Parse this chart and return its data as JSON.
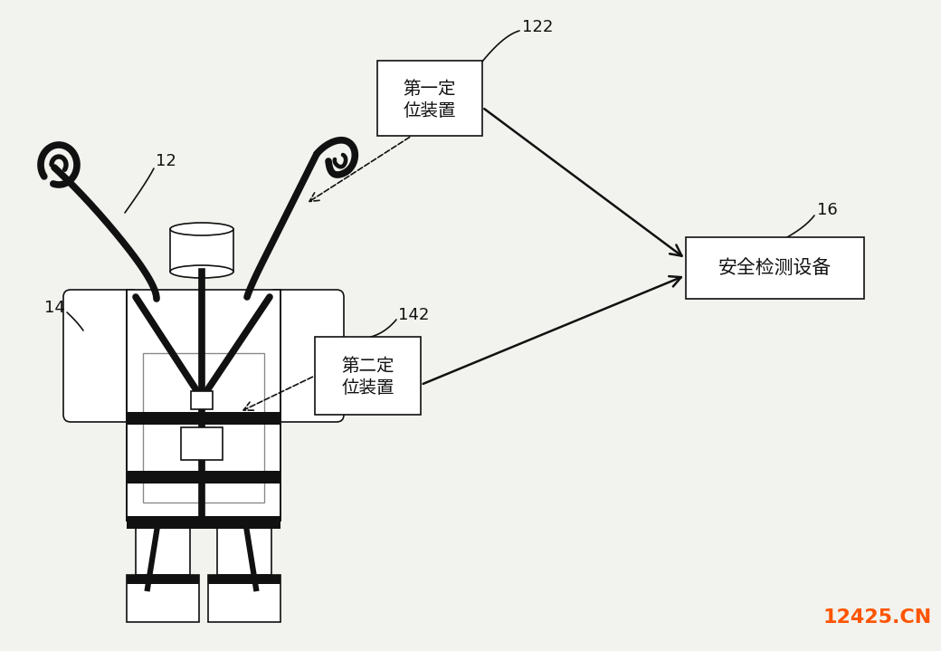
{
  "bg_color": "#f2f2ee",
  "line_color": "#111111",
  "thick_lw": 5.5,
  "thin_lw": 1.2,
  "label_12": "12",
  "label_14": "14",
  "label_122": "122",
  "label_142": "142",
  "label_16": "16",
  "box1_text_line1": "第一定",
  "box1_text_line2": "位装置",
  "box2_text_line1": "第二定",
  "box2_text_line2": "位装置",
  "box3_text": "安全检测设备",
  "watermark": "12425.CN",
  "watermark_color": "#ff5500",
  "fig_w": 10.0,
  "fig_h": 6.99
}
